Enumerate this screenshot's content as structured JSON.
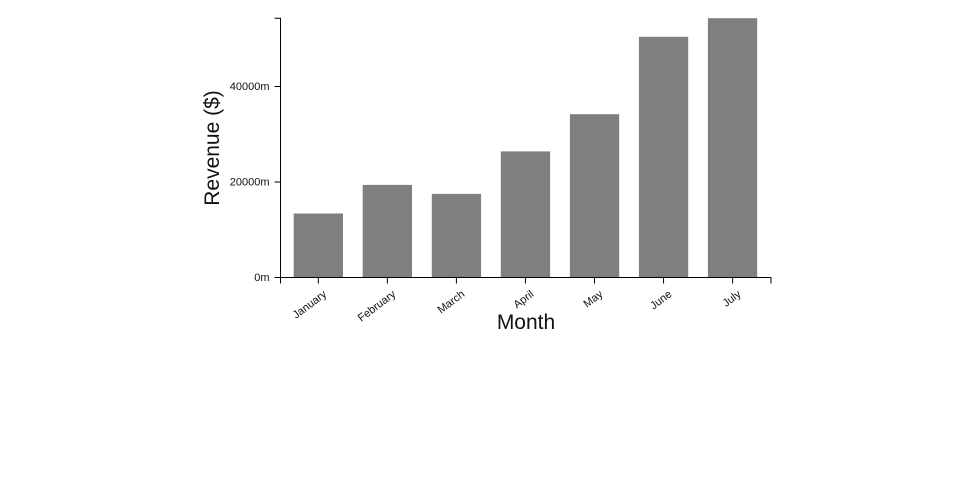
{
  "chart_data": {
    "type": "bar",
    "title": "",
    "xlabel": "Month",
    "ylabel": "Revenue ($)",
    "categories": [
      "January",
      "February",
      "March",
      "April",
      "May",
      "June",
      "July"
    ],
    "values": [
      13400,
      19400,
      17500,
      26400,
      34200,
      50400,
      54300
    ],
    "unit_suffix": "m",
    "y_ticks": [
      {
        "value": 0,
        "label": "0m"
      },
      {
        "value": 20000,
        "label": "20000m"
      },
      {
        "value": 40000,
        "label": "40000m"
      }
    ],
    "ylim": [
      0,
      54300
    ],
    "grid": false,
    "legend": false,
    "colors": {
      "bar": "#7f7f7f",
      "axis": "#000000",
      "text": "#111111",
      "background": "#ffffff"
    }
  }
}
